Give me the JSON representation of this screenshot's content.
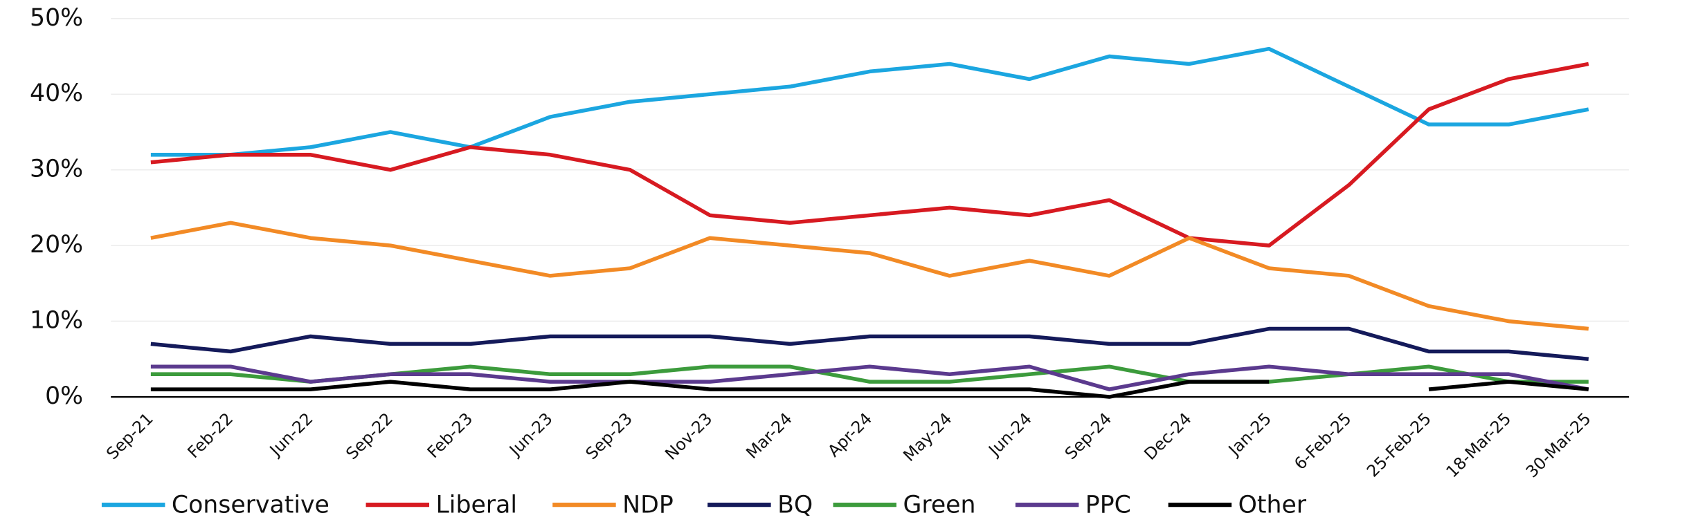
{
  "chart_data": {
    "type": "line",
    "categories": [
      "Sep-21",
      "Feb-22",
      "Jun-22",
      "Sep-22",
      "Feb-23",
      "Jun-23",
      "Sep-23",
      "Nov-23",
      "Mar-24",
      "Apr-24",
      "May-24",
      "Jun-24",
      "Sep-24",
      "Dec-24",
      "Jan-25",
      "6-Feb-25",
      "25-Feb-25",
      "18-Mar-25",
      "30-Mar-25"
    ],
    "series": [
      {
        "name": "Conservative",
        "color": "#1ba6e0",
        "values": [
          32,
          32,
          33,
          35,
          33,
          37,
          39,
          40,
          41,
          43,
          44,
          42,
          45,
          44,
          46,
          41,
          36,
          36,
          38
        ]
      },
      {
        "name": "Liberal",
        "color": "#d71a21",
        "values": [
          31,
          32,
          32,
          30,
          33,
          32,
          30,
          24,
          23,
          24,
          25,
          24,
          26,
          21,
          20,
          28,
          38,
          42,
          44
        ]
      },
      {
        "name": "NDP",
        "color": "#f28a25",
        "values": [
          21,
          23,
          21,
          20,
          18,
          16,
          17,
          21,
          20,
          19,
          16,
          18,
          16,
          21,
          17,
          16,
          12,
          10,
          9
        ]
      },
      {
        "name": "BQ",
        "color": "#141a5a",
        "values": [
          7,
          6,
          8,
          7,
          7,
          8,
          8,
          8,
          7,
          8,
          8,
          8,
          7,
          7,
          9,
          9,
          6,
          6,
          5
        ]
      },
      {
        "name": "Green",
        "color": "#3c9b3c",
        "values": [
          3,
          3,
          2,
          3,
          4,
          3,
          3,
          4,
          4,
          2,
          2,
          3,
          4,
          2,
          2,
          3,
          4,
          2,
          2
        ]
      },
      {
        "name": "PPC",
        "color": "#5b3a8e",
        "values": [
          4,
          4,
          2,
          3,
          3,
          2,
          2,
          2,
          3,
          4,
          3,
          4,
          1,
          3,
          4,
          3,
          3,
          3,
          1
        ]
      },
      {
        "name": "Other",
        "color": "#000000",
        "values": [
          1,
          1,
          1,
          2,
          1,
          1,
          2,
          1,
          1,
          1,
          1,
          1,
          0,
          2,
          2,
          null,
          1,
          2,
          1
        ]
      }
    ],
    "ylim": [
      0,
      50
    ],
    "yticks": [
      {
        "value": 0,
        "label": "0%"
      },
      {
        "value": 10,
        "label": "10%"
      },
      {
        "value": 20,
        "label": "20%"
      },
      {
        "value": 30,
        "label": "30%"
      },
      {
        "value": 40,
        "label": "40%"
      },
      {
        "value": 50,
        "label": "50%"
      }
    ],
    "grid": true,
    "legend": "bottom"
  }
}
